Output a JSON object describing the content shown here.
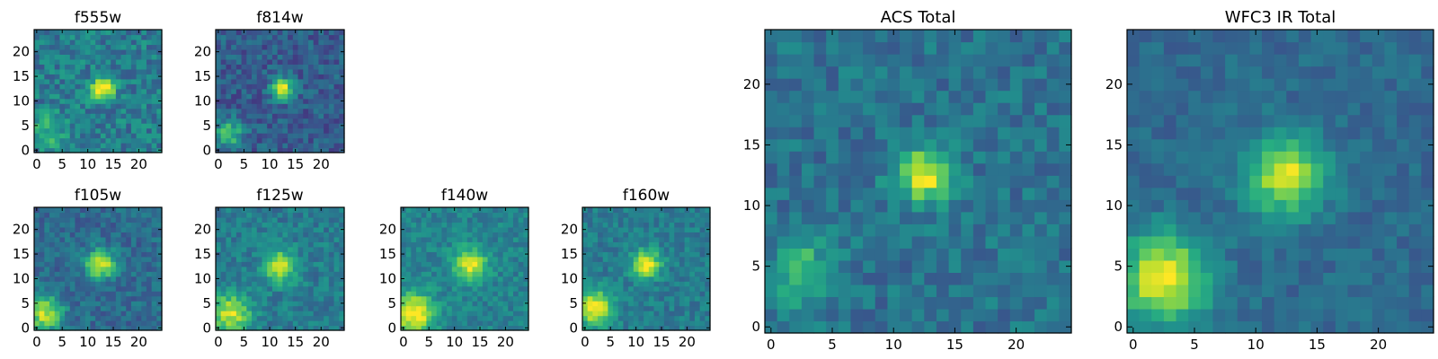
{
  "chart_data": [
    {
      "type": "heatmap",
      "title": "f555w",
      "xlabel": "",
      "ylabel": "",
      "xlim": [
        -0.5,
        24.5
      ],
      "ylim": [
        -0.5,
        24.5
      ],
      "xticks": [
        0,
        5,
        10,
        15,
        20
      ],
      "yticks": [
        0,
        5,
        10,
        15,
        20
      ],
      "grid": false,
      "colormap": "viridis",
      "sources": [
        {
          "x": 13,
          "y": 12.5,
          "amplitude": 0.65,
          "sigma": 1.6
        },
        {
          "x": 2.5,
          "y": 4,
          "amplitude": 0.25,
          "sigma": 2.5
        }
      ],
      "background": 0.42,
      "noise": 0.3
    },
    {
      "type": "heatmap",
      "title": "f814w",
      "xlabel": "",
      "ylabel": "",
      "xlim": [
        -0.5,
        24.5
      ],
      "ylim": [
        -0.5,
        24.5
      ],
      "xticks": [
        0,
        5,
        10,
        15,
        20
      ],
      "yticks": [
        0,
        5,
        10,
        15,
        20
      ],
      "grid": false,
      "colormap": "viridis",
      "sources": [
        {
          "x": 12.5,
          "y": 12.5,
          "amplitude": 0.68,
          "sigma": 1.5
        },
        {
          "x": 2,
          "y": 3.5,
          "amplitude": 0.42,
          "sigma": 2
        }
      ],
      "background": 0.3,
      "noise": 0.25
    },
    {
      "type": "heatmap",
      "title": "f105w",
      "xlabel": "",
      "ylabel": "",
      "xlim": [
        -0.5,
        24.5
      ],
      "ylim": [
        -0.5,
        24.5
      ],
      "xticks": [
        0,
        5,
        10,
        15,
        20
      ],
      "yticks": [
        0,
        5,
        10,
        15,
        20
      ],
      "grid": false,
      "colormap": "viridis",
      "sources": [
        {
          "x": 12.5,
          "y": 13,
          "amplitude": 0.62,
          "sigma": 2
        },
        {
          "x": 1.5,
          "y": 3,
          "amplitude": 0.55,
          "sigma": 2.5
        }
      ],
      "background": 0.35,
      "noise": 0.22
    },
    {
      "type": "heatmap",
      "title": "f125w",
      "xlabel": "",
      "ylabel": "",
      "xlim": [
        -0.5,
        24.5
      ],
      "ylim": [
        -0.5,
        24.5
      ],
      "xticks": [
        0,
        5,
        10,
        15,
        20
      ],
      "yticks": [
        0,
        5,
        10,
        15,
        20
      ],
      "grid": false,
      "colormap": "viridis",
      "sources": [
        {
          "x": 12,
          "y": 12.5,
          "amplitude": 0.52,
          "sigma": 2.2
        },
        {
          "x": 2.5,
          "y": 3,
          "amplitude": 0.5,
          "sigma": 2.8
        }
      ],
      "background": 0.42,
      "noise": 0.22
    },
    {
      "type": "heatmap",
      "title": "f140w",
      "xlabel": "",
      "ylabel": "",
      "xlim": [
        -0.5,
        24.5
      ],
      "ylim": [
        -0.5,
        24.5
      ],
      "xticks": [
        0,
        5,
        10,
        15,
        20
      ],
      "yticks": [
        0,
        5,
        10,
        15,
        20
      ],
      "grid": false,
      "colormap": "viridis",
      "sources": [
        {
          "x": 13,
          "y": 13,
          "amplitude": 0.5,
          "sigma": 2.3
        },
        {
          "x": 2,
          "y": 3,
          "amplitude": 0.6,
          "sigma": 2.8
        }
      ],
      "background": 0.45,
      "noise": 0.2
    },
    {
      "type": "heatmap",
      "title": "f160w",
      "xlabel": "",
      "ylabel": "",
      "xlim": [
        -0.5,
        24.5
      ],
      "ylim": [
        -0.5,
        24.5
      ],
      "xticks": [
        0,
        5,
        10,
        15,
        20
      ],
      "yticks": [
        0,
        5,
        10,
        15,
        20
      ],
      "grid": false,
      "colormap": "viridis",
      "sources": [
        {
          "x": 12,
          "y": 13,
          "amplitude": 0.55,
          "sigma": 2
        },
        {
          "x": 2,
          "y": 4,
          "amplitude": 0.6,
          "sigma": 2.5
        }
      ],
      "background": 0.42,
      "noise": 0.2
    },
    {
      "type": "heatmap",
      "title": "ACS Total",
      "xlabel": "",
      "ylabel": "",
      "xlim": [
        -0.5,
        24.5
      ],
      "ylim": [
        -0.5,
        24.5
      ],
      "xticks": [
        0,
        5,
        10,
        15,
        20
      ],
      "yticks": [
        0,
        5,
        10,
        15,
        20
      ],
      "grid": false,
      "colormap": "viridis",
      "sources": [
        {
          "x": 12.5,
          "y": 12.5,
          "amplitude": 0.62,
          "sigma": 1.6
        },
        {
          "x": 2.5,
          "y": 4.5,
          "amplitude": 0.35,
          "sigma": 1.8
        }
      ],
      "background": 0.38,
      "noise": 0.22
    },
    {
      "type": "heatmap",
      "title": "WFC3 IR Total",
      "xlabel": "",
      "ylabel": "",
      "xlim": [
        -0.5,
        24.5
      ],
      "ylim": [
        -0.5,
        24.5
      ],
      "xticks": [
        0,
        5,
        10,
        15,
        20
      ],
      "yticks": [
        0,
        5,
        10,
        15,
        20
      ],
      "grid": false,
      "colormap": "viridis",
      "sources": [
        {
          "x": 12.5,
          "y": 12.5,
          "amplitude": 0.6,
          "sigma": 2.2
        },
        {
          "x": 2.5,
          "y": 4,
          "amplitude": 0.65,
          "sigma": 2.5
        }
      ],
      "background": 0.35,
      "noise": 0.15
    }
  ],
  "colors": {
    "axis": "#000000",
    "background": "#ffffff"
  }
}
